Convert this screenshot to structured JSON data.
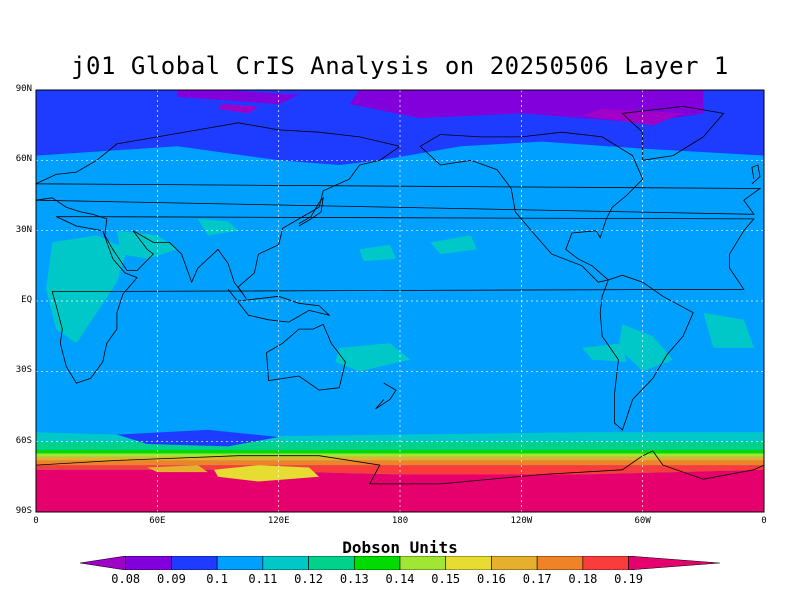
{
  "title": "j01 Global CrIS Analysis on 20250506 Layer 1",
  "map": {
    "lat_labels": [
      "90N",
      "60N",
      "30N",
      "EQ",
      "30S",
      "60S",
      "90S"
    ],
    "lon_labels": [
      "0",
      "60E",
      "120E",
      "180",
      "120W",
      "60W",
      "0"
    ],
    "grid": true
  },
  "colorbar": {
    "title": "Dobson Units",
    "labels": [
      "0.08",
      "0.09",
      "0.1",
      "0.11",
      "0.12",
      "0.13",
      "0.14",
      "0.15",
      "0.16",
      "0.17",
      "0.18",
      "0.19"
    ],
    "colors": [
      "#a000c8",
      "#8200dc",
      "#1e3cff",
      "#00a0ff",
      "#00c8c8",
      "#00d28c",
      "#00dc00",
      "#a0e632",
      "#e6dc32",
      "#e6af2d",
      "#f08228",
      "#fa3c3c",
      "#e6006e"
    ]
  },
  "chart_data": {
    "type": "heatmap",
    "title": "j01 Global CrIS Analysis on 20250506 Layer 1",
    "units": "Dobson Units",
    "levels": [
      0.08,
      0.09,
      0.1,
      0.11,
      0.12,
      0.13,
      0.14,
      0.15,
      0.16,
      0.17,
      0.18,
      0.19
    ],
    "lat_range": [
      -90,
      90
    ],
    "lon_range": [
      0,
      360
    ]
  }
}
